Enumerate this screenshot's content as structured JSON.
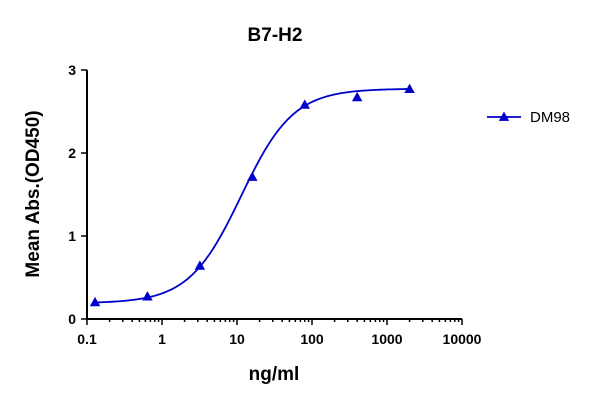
{
  "chart_data": {
    "type": "scatter",
    "title": "B7-H2",
    "xlabel": "ng/ml",
    "ylabel": "Mean Abs.(OD450)",
    "x_scale": "log",
    "xlim": [
      0.1,
      10000
    ],
    "ylim": [
      0,
      3
    ],
    "x_ticks": [
      0.1,
      1,
      10,
      100,
      1000,
      10000
    ],
    "x_tick_labels": [
      "0.1",
      "1",
      "10",
      "100",
      "1000",
      "10000"
    ],
    "y_ticks": [
      0,
      1,
      2,
      3
    ],
    "y_tick_labels": [
      "0",
      "1",
      "2",
      "3"
    ],
    "grid": false,
    "legend_position": "right",
    "series": [
      {
        "name": "DM98",
        "color": "#0000cc",
        "marker": "triangle",
        "fit": "four-parameter-logistic",
        "x": [
          0.128,
          0.64,
          3.2,
          16,
          80,
          400,
          2000
        ],
        "y": [
          0.2,
          0.27,
          0.64,
          1.71,
          2.58,
          2.67,
          2.77
        ]
      }
    ]
  }
}
